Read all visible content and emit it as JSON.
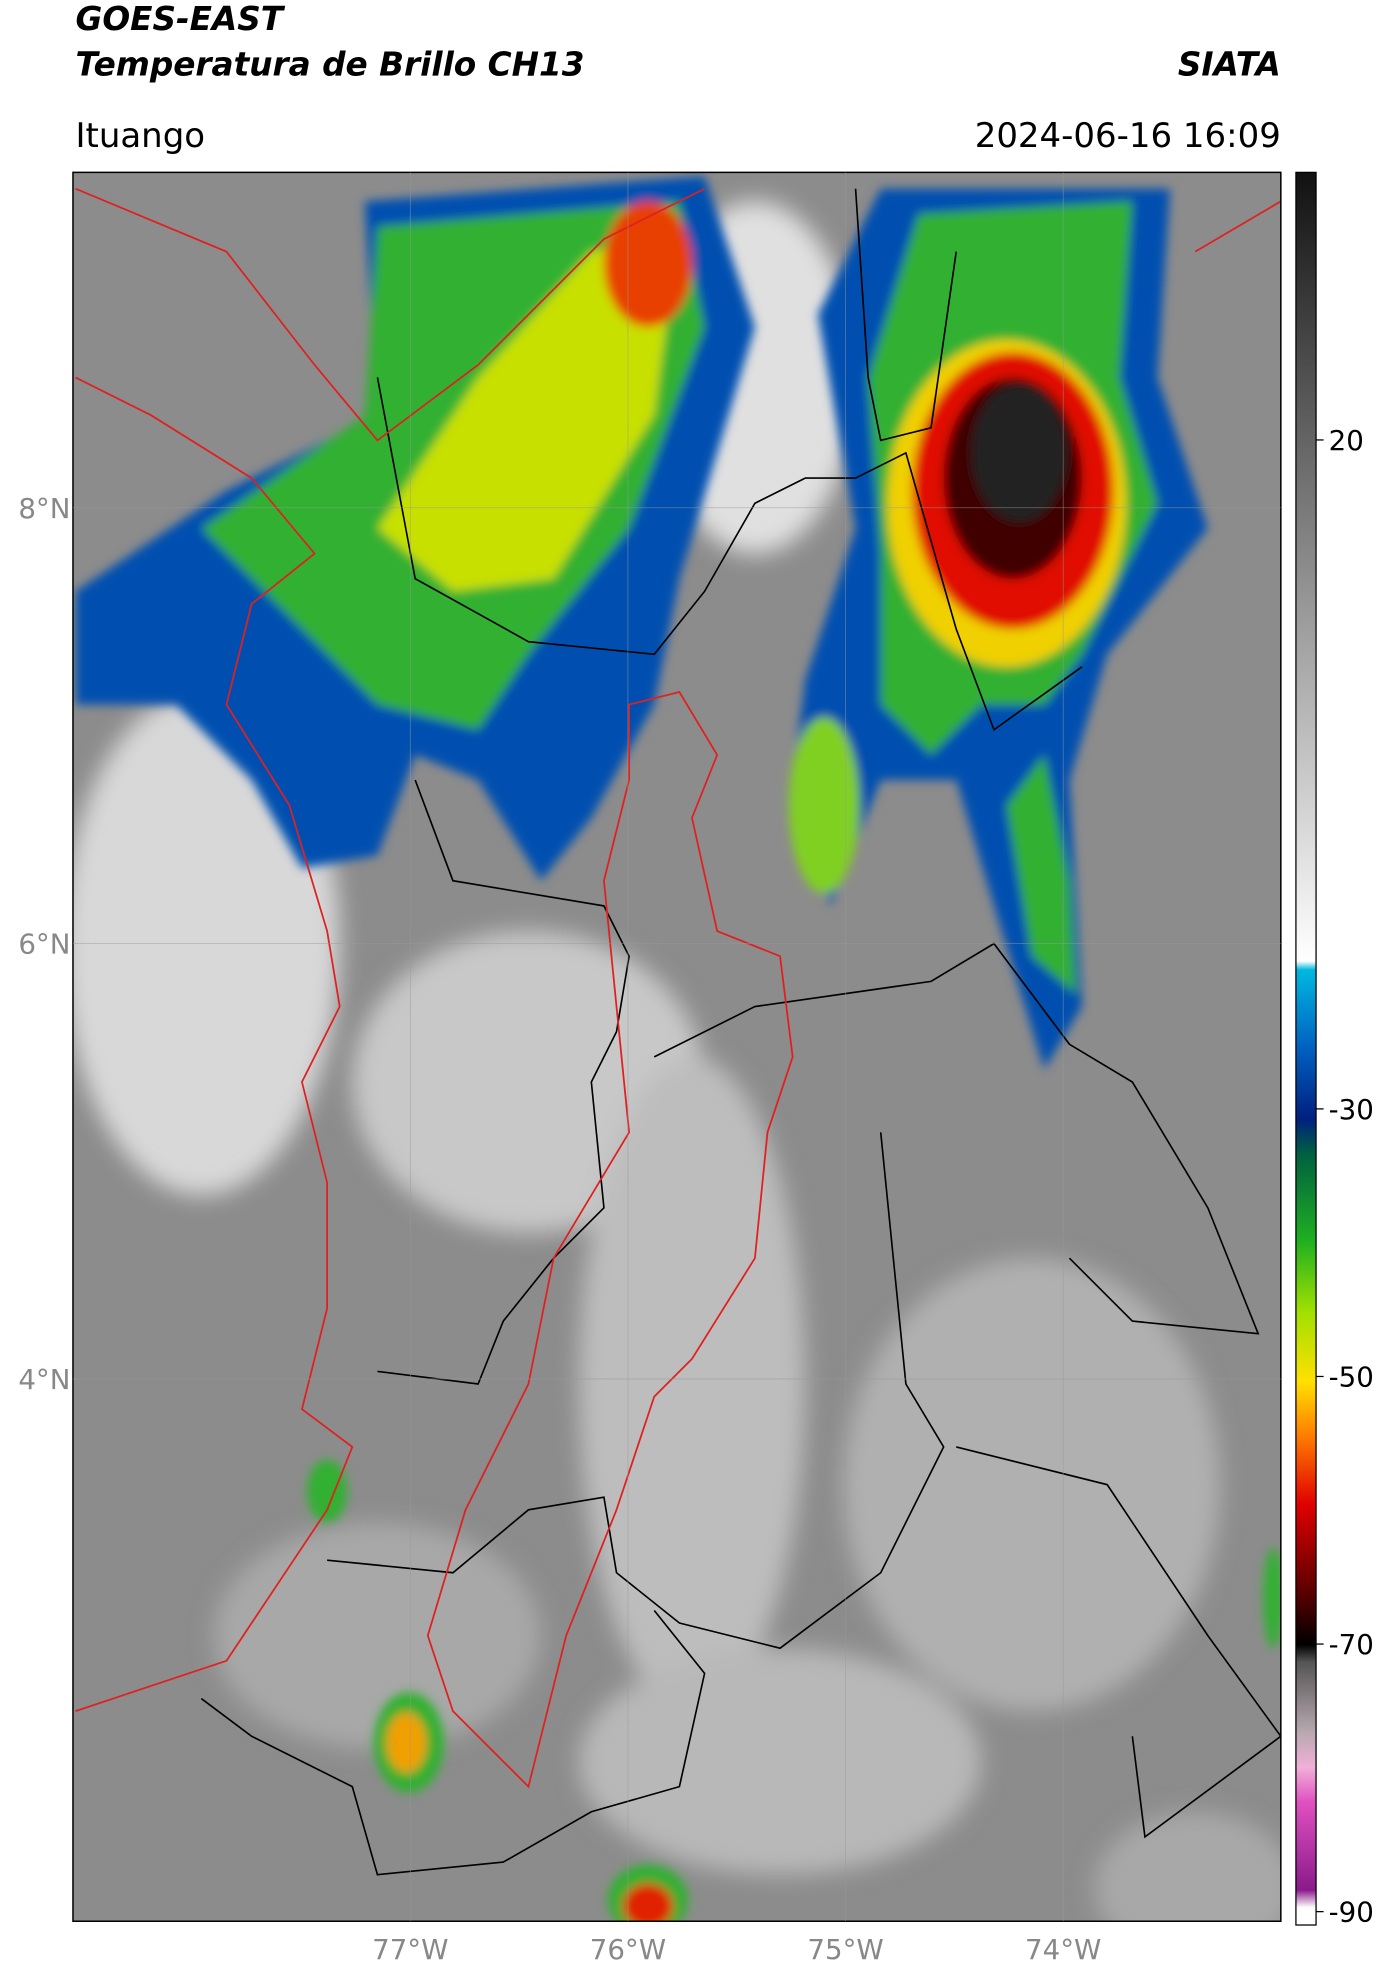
{
  "header": {
    "title": "GOES-EAST",
    "subtitle": "Temperatura de Brillo CH13",
    "organization": "SIATA",
    "location": "Ituango",
    "datetime": "2024-06-16 16:09"
  },
  "map": {
    "xlim": [
      -78.55,
      -73.0
    ],
    "ylim": [
      1.51,
      9.54
    ],
    "xticks": [
      {
        "value": -77,
        "label": "77°W"
      },
      {
        "value": -76,
        "label": "76°W"
      },
      {
        "value": -75,
        "label": "75°W"
      },
      {
        "value": -74,
        "label": "74°W"
      }
    ],
    "yticks": [
      {
        "value": 8,
        "label": "8°N"
      },
      {
        "value": 6,
        "label": "6°N"
      },
      {
        "value": 4,
        "label": "4°N"
      }
    ]
  },
  "colorbar": {
    "lim": [
      -91,
      40
    ],
    "ticks": [
      20,
      -30,
      -50,
      -70,
      -90
    ]
  }
}
